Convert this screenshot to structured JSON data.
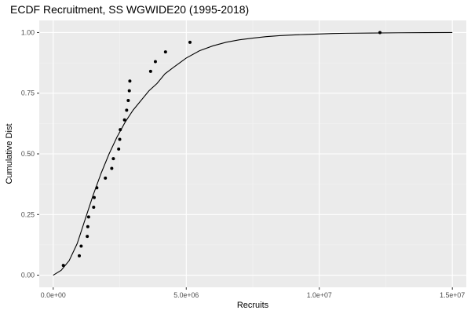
{
  "chart_data": {
    "type": "scatter",
    "title": "ECDF Recruitment, SS WGWIDE20 (1995-2018)",
    "xlabel": "Recruits",
    "ylabel": "Cumulative Dist",
    "xlim": [
      -525000,
      15525000
    ],
    "ylim": [
      -0.05,
      1.05
    ],
    "x_ticks": [
      0,
      5000000,
      10000000,
      15000000
    ],
    "x_tick_labels": [
      "0.0e+00",
      "5.0e+06",
      "1.0e+07",
      "1.5e+07"
    ],
    "y_ticks": [
      0,
      0.25,
      0.5,
      0.75,
      1
    ],
    "y_tick_labels": [
      "0.00",
      "0.25",
      "0.50",
      "0.75",
      "1.00"
    ],
    "grid": true,
    "legend": "none",
    "points": [
      {
        "x": 380000,
        "y": 0.04
      },
      {
        "x": 980000,
        "y": 0.08
      },
      {
        "x": 1050000,
        "y": 0.12
      },
      {
        "x": 1280000,
        "y": 0.16
      },
      {
        "x": 1300000,
        "y": 0.2
      },
      {
        "x": 1330000,
        "y": 0.24
      },
      {
        "x": 1520000,
        "y": 0.28
      },
      {
        "x": 1540000,
        "y": 0.32
      },
      {
        "x": 1640000,
        "y": 0.36
      },
      {
        "x": 1960000,
        "y": 0.4
      },
      {
        "x": 2200000,
        "y": 0.44
      },
      {
        "x": 2260000,
        "y": 0.48
      },
      {
        "x": 2460000,
        "y": 0.52
      },
      {
        "x": 2500000,
        "y": 0.56
      },
      {
        "x": 2520000,
        "y": 0.6
      },
      {
        "x": 2680000,
        "y": 0.64
      },
      {
        "x": 2760000,
        "y": 0.68
      },
      {
        "x": 2820000,
        "y": 0.72
      },
      {
        "x": 2860000,
        "y": 0.76
      },
      {
        "x": 2880000,
        "y": 0.8
      },
      {
        "x": 3660000,
        "y": 0.84
      },
      {
        "x": 3840000,
        "y": 0.88
      },
      {
        "x": 4220000,
        "y": 0.92
      },
      {
        "x": 5140000,
        "y": 0.96
      },
      {
        "x": 12280000,
        "y": 1.0
      }
    ],
    "fitted_curve": {
      "x": [
        0,
        300000,
        600000,
        900000,
        1200000,
        1500000,
        1800000,
        2100000,
        2400000,
        2700000,
        3000000,
        3300000,
        3600000,
        3900000,
        4200000,
        4500000,
        5000000,
        5500000,
        6000000,
        6500000,
        7000000,
        7500000,
        8000000,
        8500000,
        9000000,
        9500000,
        10000000,
        10500000,
        11000000,
        12000000,
        13000000,
        14000000,
        15000000
      ],
      "y": [
        0.0,
        0.02,
        0.06,
        0.13,
        0.23,
        0.33,
        0.42,
        0.5,
        0.57,
        0.63,
        0.68,
        0.72,
        0.76,
        0.79,
        0.83,
        0.855,
        0.895,
        0.925,
        0.945,
        0.96,
        0.97,
        0.977,
        0.983,
        0.987,
        0.99,
        0.992,
        0.994,
        0.996,
        0.997,
        0.998,
        0.999,
        0.9995,
        1.0
      ]
    }
  }
}
